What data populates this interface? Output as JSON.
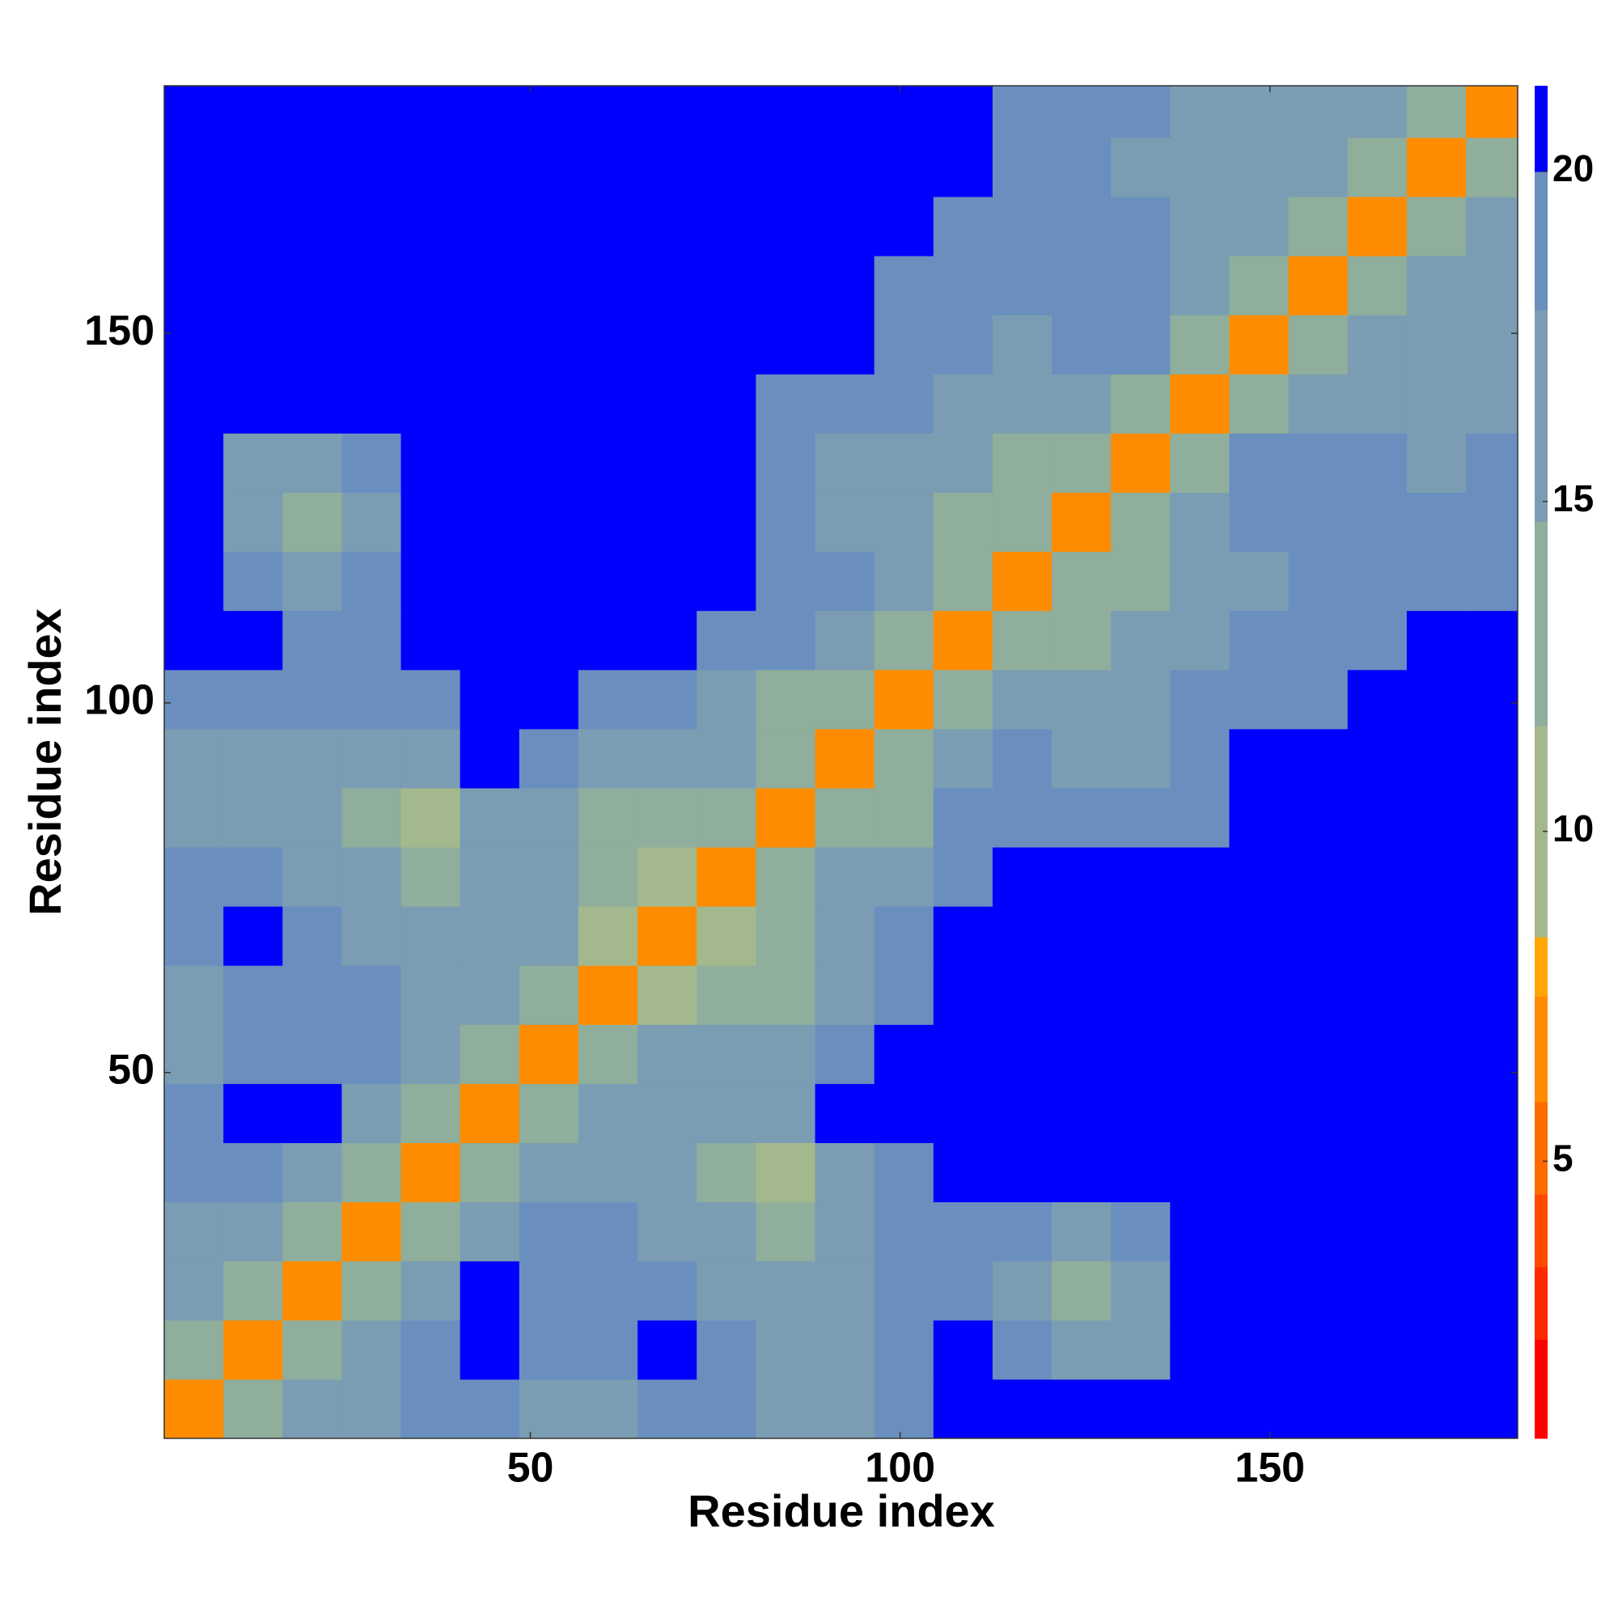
{
  "chart_data": {
    "type": "heatmap",
    "xlabel": "Residue index",
    "ylabel": "Residue index",
    "xlim": [
      0.5,
      183.5
    ],
    "ylim": [
      0.5,
      183.5
    ],
    "xticks": [
      50,
      100,
      150
    ],
    "yticks": [
      50,
      100,
      150
    ],
    "xbins": [
      0.5,
      8.5,
      16.5,
      24.5,
      32.5,
      40.5,
      48.5,
      56.5,
      64.5,
      72.5,
      80.5,
      88.5,
      96.5,
      104.5,
      112.5,
      120.5,
      128.5,
      136.5,
      144.5,
      152.5,
      160.5,
      168.5,
      176.5,
      183.5
    ],
    "ybins": [
      0.5,
      8.5,
      16.5,
      24.5,
      32.5,
      40.5,
      48.5,
      56.5,
      64.5,
      72.5,
      80.5,
      88.5,
      96.5,
      104.5,
      112.5,
      120.5,
      128.5,
      136.5,
      144.5,
      152.5,
      160.5,
      168.5,
      176.5,
      183.5
    ],
    "z": [
      [
        7,
        13,
        16,
        17,
        19,
        19,
        17,
        17,
        20,
        19,
        17,
        17,
        20,
        22,
        23,
        21,
        24,
        25,
        25,
        25,
        25,
        25,
        25
      ],
      [
        13,
        7,
        13,
        15,
        19,
        21,
        20,
        18,
        21,
        19,
        16,
        17,
        19,
        21,
        19,
        16,
        17,
        21,
        25,
        25,
        25,
        25,
        25
      ],
      [
        16,
        13,
        7,
        12,
        17,
        21,
        19,
        19,
        19,
        17,
        15,
        16,
        18,
        18,
        17,
        14,
        17,
        21,
        25,
        25,
        25,
        25,
        25
      ],
      [
        17,
        15,
        12,
        7,
        12,
        15,
        18,
        19,
        17,
        15,
        14,
        16,
        18,
        19,
        18,
        16,
        19,
        25,
        25,
        25,
        25,
        25,
        25
      ],
      [
        19,
        19,
        17,
        12,
        7,
        12,
        15,
        16,
        16,
        14,
        11,
        15,
        20,
        23,
        25,
        25,
        25,
        25,
        25,
        25,
        25,
        25,
        25
      ],
      [
        19,
        21,
        21,
        15,
        12,
        7,
        12,
        15,
        15,
        16,
        17,
        21,
        25,
        25,
        25,
        25,
        25,
        25,
        25,
        25,
        25,
        25,
        25
      ],
      [
        17,
        20,
        19,
        18,
        15,
        12,
        7,
        12,
        15,
        16,
        17,
        19,
        23,
        25,
        25,
        25,
        25,
        25,
        25,
        25,
        25,
        25,
        25
      ],
      [
        17,
        18,
        19,
        19,
        16,
        15,
        12,
        7,
        11,
        13,
        13,
        16,
        19,
        22,
        25,
        25,
        25,
        25,
        25,
        25,
        25,
        25,
        25
      ],
      [
        20,
        21,
        19,
        17,
        16,
        15,
        15,
        11,
        7,
        9,
        13,
        16,
        18,
        22,
        25,
        25,
        25,
        25,
        25,
        25,
        25,
        25,
        25
      ],
      [
        19,
        19,
        17,
        15,
        14,
        16,
        16,
        13,
        9,
        7,
        12,
        15,
        17,
        19,
        22,
        25,
        25,
        25,
        25,
        25,
        25,
        25,
        25
      ],
      [
        17,
        16,
        15,
        14,
        11,
        17,
        17,
        13,
        13,
        12,
        7,
        12,
        14,
        20,
        20,
        18,
        18,
        20,
        23,
        25,
        25,
        25,
        25
      ],
      [
        17,
        17,
        16,
        16,
        15,
        21,
        19,
        16,
        16,
        15,
        12,
        7,
        12,
        17,
        20,
        17,
        17,
        19,
        24,
        25,
        25,
        25,
        25
      ],
      [
        20,
        19,
        18,
        18,
        20,
        25,
        23,
        19,
        18,
        17,
        14,
        12,
        7,
        12,
        15,
        16,
        16,
        18,
        19,
        20,
        21,
        21,
        22
      ],
      [
        22,
        21,
        18,
        19,
        23,
        25,
        25,
        22,
        22,
        19,
        20,
        17,
        12,
        7,
        12,
        14,
        15,
        16,
        18,
        18,
        20,
        21,
        21
      ],
      [
        23,
        19,
        17,
        18,
        25,
        25,
        25,
        25,
        25,
        22,
        20,
        20,
        15,
        12,
        7,
        12,
        14,
        15,
        17,
        18,
        18,
        19,
        19
      ],
      [
        21,
        16,
        14,
        16,
        25,
        25,
        25,
        25,
        25,
        25,
        18,
        17,
        16,
        14,
        12,
        7,
        12,
        15,
        19,
        20,
        18,
        18,
        18
      ],
      [
        24,
        17,
        17,
        19,
        25,
        25,
        25,
        25,
        25,
        25,
        18,
        17,
        16,
        15,
        14,
        12,
        7,
        12,
        18,
        20,
        18,
        17,
        18
      ],
      [
        25,
        21,
        21,
        25,
        25,
        25,
        25,
        25,
        25,
        25,
        20,
        19,
        18,
        16,
        15,
        15,
        12,
        7,
        12,
        16,
        17,
        16,
        17
      ],
      [
        25,
        25,
        25,
        25,
        25,
        25,
        25,
        25,
        25,
        25,
        23,
        24,
        19,
        18,
        17,
        19,
        18,
        12,
        7,
        12,
        15,
        16,
        17
      ],
      [
        25,
        25,
        25,
        25,
        25,
        25,
        25,
        25,
        25,
        25,
        25,
        25,
        20,
        18,
        18,
        20,
        20,
        16,
        12,
        7,
        12,
        15,
        16
      ],
      [
        25,
        25,
        25,
        25,
        25,
        25,
        25,
        25,
        25,
        25,
        25,
        25,
        21,
        20,
        18,
        18,
        18,
        17,
        15,
        12,
        7,
        12,
        15
      ],
      [
        25,
        25,
        25,
        25,
        25,
        25,
        25,
        25,
        25,
        25,
        25,
        25,
        21,
        21,
        19,
        18,
        17,
        16,
        16,
        15,
        12,
        7,
        12
      ],
      [
        25,
        25,
        25,
        25,
        25,
        25,
        25,
        25,
        25,
        25,
        25,
        25,
        22,
        21,
        19,
        18,
        18,
        17,
        17,
        16,
        15,
        12,
        7
      ]
    ],
    "clim": [
      0.8,
      21.3
    ],
    "cticks": [
      5,
      10,
      15,
      20
    ],
    "colorscale": [
      {
        "max": 2.3,
        "color": "#ff0000"
      },
      {
        "max": 3.4,
        "color": "#ff2a00"
      },
      {
        "max": 4.5,
        "color": "#ff4a00"
      },
      {
        "max": 5.9,
        "color": "#ff6a00"
      },
      {
        "max": 7.5,
        "color": "#ff8c00"
      },
      {
        "max": 8.4,
        "color": "#ffa500"
      },
      {
        "max": 11.6,
        "color": "#a3b98d"
      },
      {
        "max": 14.7,
        "color": "#8fae9c"
      },
      {
        "max": 17.9,
        "color": "#7b9db3"
      },
      {
        "max": 20.0,
        "color": "#6a8fbf"
      },
      {
        "max": 21.3,
        "color": "#0000ff"
      }
    ]
  }
}
